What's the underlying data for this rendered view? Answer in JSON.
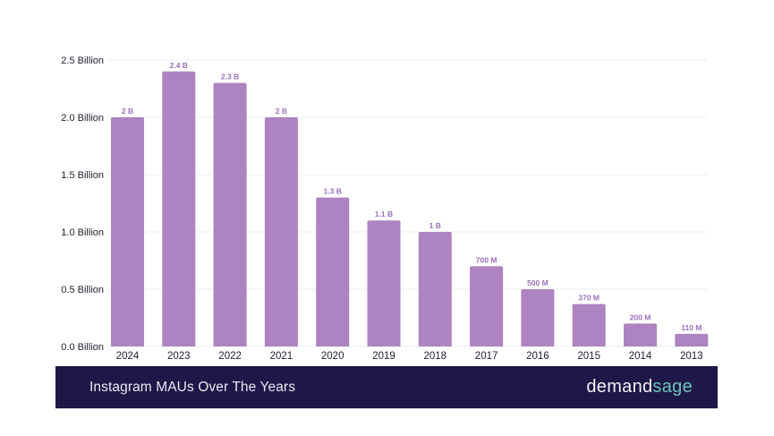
{
  "chart_data": {
    "type": "bar",
    "title": "Instagram MAUs Over The Years",
    "xlabel": "",
    "ylabel": "",
    "unit": "billion",
    "categories": [
      "2024",
      "2023",
      "2022",
      "2021",
      "2020",
      "2019",
      "2018",
      "2017",
      "2016",
      "2015",
      "2014",
      "2013"
    ],
    "values": [
      2.0,
      2.4,
      2.3,
      2.0,
      1.3,
      1.1,
      1.0,
      0.7,
      0.5,
      0.37,
      0.2,
      0.11
    ],
    "data_labels": [
      "2 B",
      "2.4 B",
      "2.3 B",
      "2 B",
      "1.3 B",
      "1.1 B",
      "1 B",
      "700 M",
      "500 M",
      "370 M",
      "200 M",
      "110 M"
    ],
    "ylim": [
      0,
      2.5
    ],
    "yticks": [
      0,
      0.5,
      1.0,
      1.5,
      2.0,
      2.5
    ],
    "ytick_labels": [
      "0.0 Billion",
      "0.5 Billion",
      "1.0 Billion",
      "1.5 Billion",
      "2.0 Billion",
      "2.5 Billion"
    ],
    "grid": true,
    "legend": "none",
    "bar_color": "#ad83c1",
    "label_color": "#9b6fb8"
  },
  "footer": {
    "title": "Instagram MAUs Over The Years",
    "brand_part1": "demand",
    "brand_part2": "sage",
    "background": "#1e1848"
  }
}
